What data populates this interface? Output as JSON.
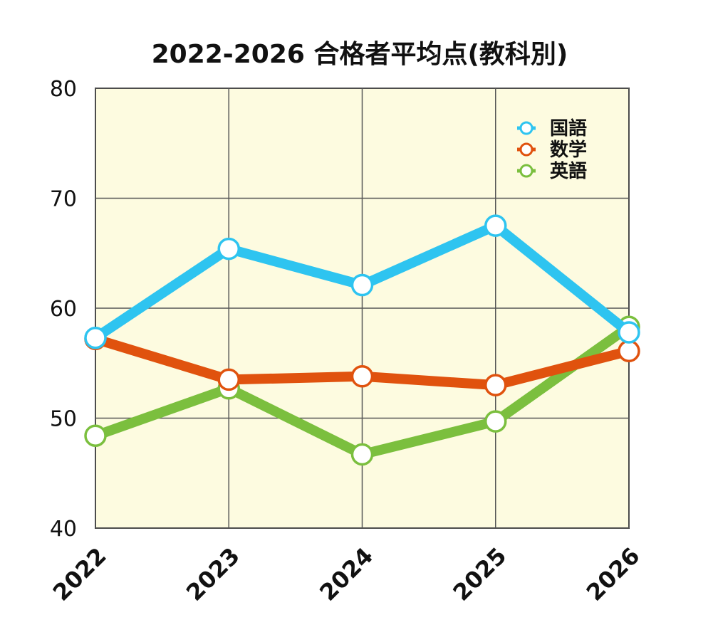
{
  "chart_data": {
    "type": "line",
    "title": "2022-2026 合格者平均点(教科別)",
    "categories": [
      "2022",
      "2023",
      "2024",
      "2025",
      "2026"
    ],
    "ylim": [
      40,
      80
    ],
    "yticks": [
      "40",
      "50",
      "60",
      "70",
      "80"
    ],
    "grid": true,
    "legend_position": "top-right",
    "background_color": "#fdfbe0",
    "series": [
      {
        "name": "国語",
        "color": "#2ec4f0",
        "values": [
          57.3,
          65.4,
          62.1,
          67.5,
          57.8
        ]
      },
      {
        "name": "数学",
        "color": "#e0520e",
        "values": [
          57.2,
          53.5,
          53.8,
          53.0,
          56.1
        ]
      },
      {
        "name": "英語",
        "color": "#7bbf3e",
        "values": [
          48.4,
          52.7,
          46.7,
          49.7,
          58.3
        ]
      }
    ]
  }
}
